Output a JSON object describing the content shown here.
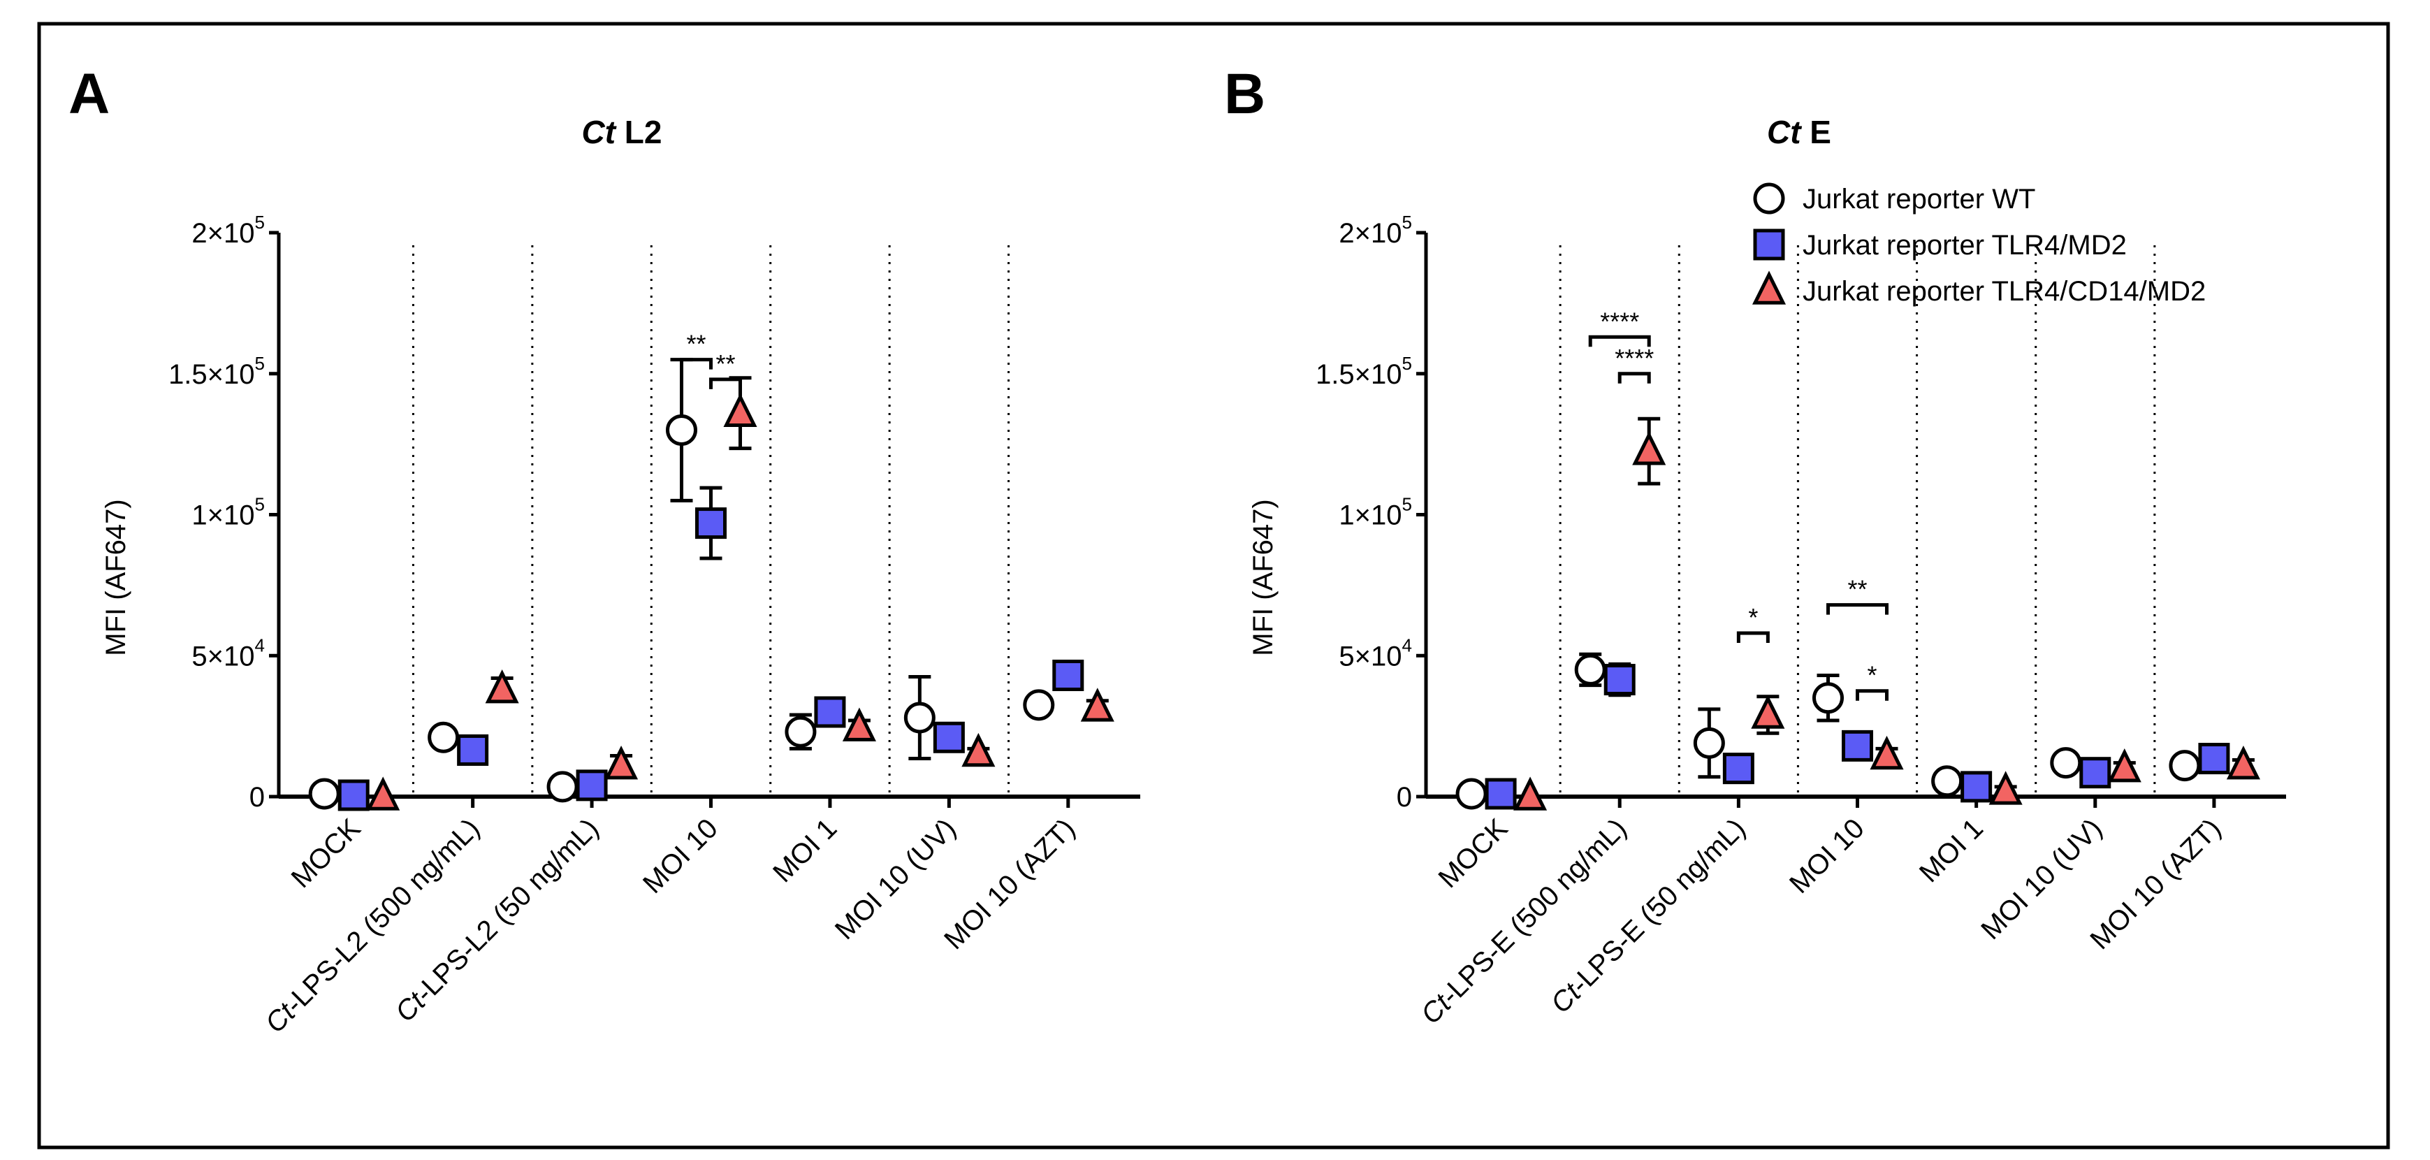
{
  "colors": {
    "wt_fill": "#ffffff",
    "tlr4_fill": "#5b5bf5",
    "cd14_fill": "#f26462",
    "stroke": "#000000"
  },
  "legend": [
    "Jurkat reporter WT",
    "Jurkat reporter TLR4/MD2",
    "Jurkat reporter TLR4/CD14/MD2"
  ],
  "chart_data": [
    {
      "type": "scatter",
      "panel_letter": "A",
      "title": {
        "italic": "Ct",
        "text": " L2"
      },
      "ylabel": "MFI (AF647)",
      "ylim": [
        0,
        200000
      ],
      "yticks": [
        {
          "value": 0,
          "base": "0",
          "exp": ""
        },
        {
          "value": 50000,
          "base": "5×10",
          "exp": "4"
        },
        {
          "value": 100000,
          "base": "1×10",
          "exp": "5"
        },
        {
          "value": 150000,
          "base": "1.5×10",
          "exp": "5"
        },
        {
          "value": 200000,
          "base": "2×10",
          "exp": "5"
        }
      ],
      "categories": [
        {
          "italic": "",
          "text": "MOCK"
        },
        {
          "italic": "Ct",
          "text": "-LPS-L2 (500 ng/mL)"
        },
        {
          "italic": "Ct",
          "text": "-LPS-L2 (50 ng/mL)"
        },
        {
          "italic": "",
          "text": "MOI 10"
        },
        {
          "italic": "",
          "text": "MOI 1"
        },
        {
          "italic": "",
          "text": "MOI 10 (UV)"
        },
        {
          "italic": "",
          "text": "MOI 10 (AZT)"
        }
      ],
      "series": [
        {
          "name": "Jurkat reporter WT",
          "marker": "circle",
          "values": [
            1000,
            21000,
            3500,
            130000,
            23000,
            28000,
            32500
          ],
          "err": [
            0,
            0,
            0,
            25000,
            6000,
            14500,
            3000
          ]
        },
        {
          "name": "Jurkat reporter TLR4/MD2",
          "marker": "square",
          "values": [
            500,
            16500,
            4000,
            97000,
            30000,
            21000,
            43000
          ],
          "err": [
            0,
            0,
            0,
            12500,
            0,
            0,
            0
          ]
        },
        {
          "name": "Jurkat reporter TLR4/CD14/MD2",
          "marker": "triangle",
          "values": [
            0,
            38000,
            11000,
            136000,
            24500,
            15500,
            31500
          ],
          "err": [
            0,
            4000,
            3500,
            12500,
            2500,
            1500,
            2500
          ]
        }
      ],
      "significance": [
        {
          "category": 3,
          "from": 0,
          "to": 1,
          "y": 155000,
          "label": "**"
        },
        {
          "category": 3,
          "from": 1,
          "to": 2,
          "y": 148000,
          "label": "**"
        }
      ]
    },
    {
      "type": "scatter",
      "panel_letter": "B",
      "title": {
        "italic": "Ct",
        "text": " E"
      },
      "ylabel": "MFI (AF647)",
      "ylim": [
        0,
        200000
      ],
      "yticks": [
        {
          "value": 0,
          "base": "0",
          "exp": ""
        },
        {
          "value": 50000,
          "base": "5×10",
          "exp": "4"
        },
        {
          "value": 100000,
          "base": "1×10",
          "exp": "5"
        },
        {
          "value": 150000,
          "base": "1.5×10",
          "exp": "5"
        },
        {
          "value": 200000,
          "base": "2×10",
          "exp": "5"
        }
      ],
      "categories": [
        {
          "italic": "",
          "text": "MOCK"
        },
        {
          "italic": "Ct",
          "text": "-LPS-E (500 ng/mL)"
        },
        {
          "italic": "Ct",
          "text": "-LPS-E (50 ng/mL)"
        },
        {
          "italic": "",
          "text": "MOI 10"
        },
        {
          "italic": "",
          "text": "MOI 1"
        },
        {
          "italic": "",
          "text": "MOI 10 (UV)"
        },
        {
          "italic": "",
          "text": "MOI 10 (AZT)"
        }
      ],
      "series": [
        {
          "name": "Jurkat reporter WT",
          "marker": "circle",
          "values": [
            1000,
            45000,
            19000,
            35000,
            5500,
            12000,
            11000
          ],
          "err": [
            0,
            5500,
            12000,
            8000,
            0,
            0,
            0
          ]
        },
        {
          "name": "Jurkat reporter TLR4/MD2",
          "marker": "square",
          "values": [
            1000,
            41500,
            10000,
            18000,
            3500,
            8500,
            13500
          ],
          "err": [
            0,
            5500,
            0,
            0,
            0,
            0,
            0
          ]
        },
        {
          "name": "Jurkat reporter TLR4/CD14/MD2",
          "marker": "triangle",
          "values": [
            0,
            122500,
            29000,
            14500,
            2000,
            10000,
            11000
          ],
          "err": [
            0,
            11500,
            6500,
            2500,
            1500,
            2000,
            2000
          ]
        }
      ],
      "significance": [
        {
          "category": 1,
          "from": 0,
          "to": 2,
          "y": 163000,
          "label": "****"
        },
        {
          "category": 1,
          "from": 1,
          "to": 2,
          "y": 150000,
          "label": "****"
        },
        {
          "category": 2,
          "from": 1,
          "to": 2,
          "y": 58000,
          "label": "*"
        },
        {
          "category": 3,
          "from": 0,
          "to": 2,
          "y": 68000,
          "label": "**"
        },
        {
          "category": 3,
          "from": 1,
          "to": 2,
          "y": 37500,
          "label": "*"
        }
      ]
    }
  ]
}
